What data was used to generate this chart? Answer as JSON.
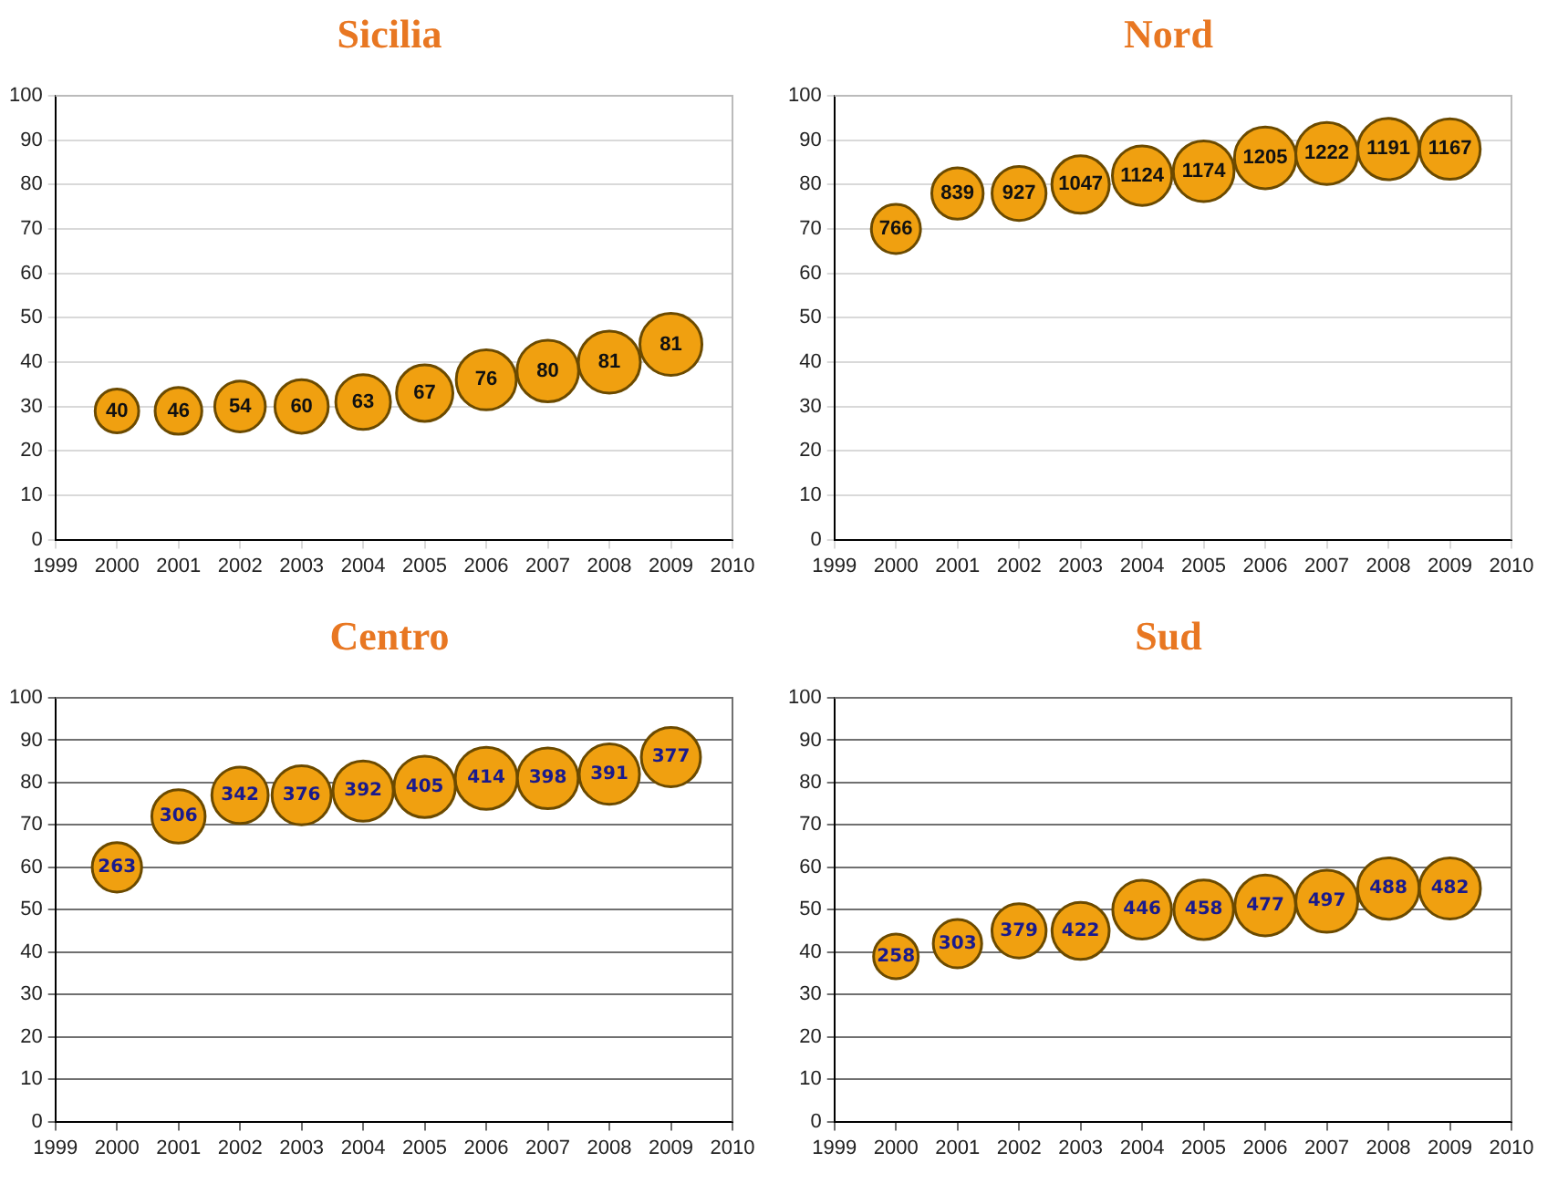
{
  "chart_data": [
    {
      "type": "bubble",
      "title": "Sicilia",
      "x": [
        2000,
        2001,
        2002,
        2003,
        2004,
        2005,
        2006,
        2007,
        2008,
        2009
      ],
      "series": [
        {
          "color": "#f0a010",
          "values": [
            29,
            29,
            30,
            30,
            31,
            33,
            36,
            38,
            40,
            44
          ],
          "sizes": [
            40,
            46,
            54,
            60,
            63,
            67,
            76,
            80,
            81,
            81
          ],
          "value_labels": [
            "40",
            "46",
            "54",
            "60",
            "63",
            "67",
            "76",
            "80",
            "81",
            "81"
          ]
        }
      ],
      "xlim": [
        1999,
        2010
      ],
      "xticks": [
        1999,
        2000,
        2001,
        2002,
        2003,
        2004,
        2005,
        2006,
        2007,
        2008,
        2009,
        2010
      ],
      "ylim": [
        0,
        100
      ],
      "yticks": [
        0,
        10,
        20,
        30,
        40,
        50,
        60,
        70,
        80,
        90,
        100
      ],
      "grid": "y",
      "legend": false
    },
    {
      "type": "bubble",
      "title": "Nord",
      "x": [
        2000,
        2001,
        2002,
        2003,
        2004,
        2005,
        2006,
        2007,
        2008,
        2009
      ],
      "series": [
        {
          "color": "#f0a010",
          "values": [
            70,
            78,
            78,
            80,
            82,
            83,
            86,
            87,
            88,
            88
          ],
          "sizes": [
            766,
            839,
            927,
            1047,
            1124,
            1174,
            1205,
            1222,
            1191,
            1167
          ],
          "value_labels": [
            "766",
            "839",
            "927",
            "1047",
            "1124",
            "1174",
            "1205",
            "1222",
            "1191",
            "1167"
          ]
        }
      ],
      "xlim": [
        1999,
        2010
      ],
      "xticks": [
        1999,
        2000,
        2001,
        2002,
        2003,
        2004,
        2005,
        2006,
        2007,
        2008,
        2009,
        2010
      ],
      "ylim": [
        0,
        100
      ],
      "yticks": [
        0,
        10,
        20,
        30,
        40,
        50,
        60,
        70,
        80,
        90,
        100
      ],
      "grid": "y",
      "legend": false
    },
    {
      "type": "bubble",
      "title": "Centro",
      "x": [
        2000,
        2001,
        2002,
        2003,
        2004,
        2005,
        2006,
        2007,
        2008,
        2009
      ],
      "series": [
        {
          "color": "#f0a010",
          "values": [
            60,
            72,
            77,
            77,
            78,
            79,
            81,
            81,
            82,
            86
          ],
          "sizes": [
            263,
            306,
            342,
            376,
            392,
            405,
            414,
            398,
            391,
            377
          ],
          "value_labels": [
            "263",
            "306",
            "342",
            "376",
            "392",
            "405",
            "414",
            "398",
            "391",
            "377"
          ]
        }
      ],
      "xlim": [
        1999,
        2010
      ],
      "xticks": [
        1999,
        2000,
        2001,
        2002,
        2003,
        2004,
        2005,
        2006,
        2007,
        2008,
        2009,
        2010
      ],
      "ylim": [
        0,
        100
      ],
      "yticks": [
        0,
        10,
        20,
        30,
        40,
        50,
        60,
        70,
        80,
        90,
        100
      ],
      "grid": "y",
      "legend": false
    },
    {
      "type": "bubble",
      "title": "Sud",
      "x": [
        2000,
        2001,
        2002,
        2003,
        2004,
        2005,
        2006,
        2007,
        2008,
        2009
      ],
      "series": [
        {
          "color": "#f0a010",
          "values": [
            39,
            42,
            45,
            45,
            50,
            50,
            51,
            52,
            55,
            55
          ],
          "sizes": [
            258,
            303,
            379,
            422,
            446,
            458,
            477,
            497,
            488,
            482
          ],
          "value_labels": [
            "258",
            "303",
            "379",
            "422",
            "446",
            "458",
            "477",
            "497",
            "488",
            "482"
          ]
        }
      ],
      "xlim": [
        1999,
        2010
      ],
      "xticks": [
        1999,
        2000,
        2001,
        2002,
        2003,
        2004,
        2005,
        2006,
        2007,
        2008,
        2009,
        2010
      ],
      "ylim": [
        0,
        100
      ],
      "yticks": [
        0,
        10,
        20,
        30,
        40,
        50,
        60,
        70,
        80,
        90,
        100
      ],
      "grid": "y",
      "legend": false
    }
  ]
}
